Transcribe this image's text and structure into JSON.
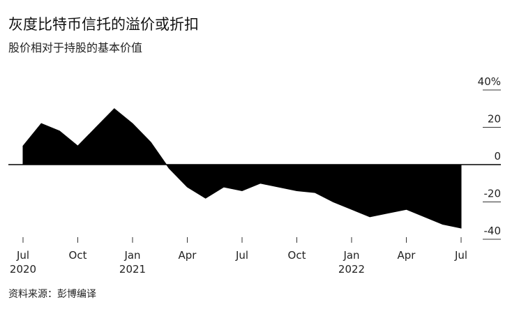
{
  "chart_data": {
    "type": "area",
    "title": "灰度比特币信托的溢价或折扣",
    "subtitle": "股价相对于持股的基本价值",
    "source": "资料来源：彭博编译",
    "x": [
      "2020-07",
      "2020-08",
      "2020-09",
      "2020-10",
      "2020-11",
      "2020-12",
      "2021-01",
      "2021-02",
      "2021-03",
      "2021-04",
      "2021-05",
      "2021-06",
      "2021-07",
      "2021-08",
      "2021-09",
      "2021-10",
      "2021-11",
      "2021-12",
      "2022-01",
      "2022-02",
      "2022-03",
      "2022-04",
      "2022-05",
      "2022-06",
      "2022-07"
    ],
    "series": [
      {
        "name": "溢价或折扣",
        "color": "#000000",
        "values": [
          10,
          22,
          18,
          10,
          20,
          30,
          22,
          12,
          -2,
          -12,
          -18,
          -12,
          -14,
          -10,
          -12,
          -14,
          -15,
          -20,
          -24,
          -28,
          -26,
          -24,
          -28,
          -32,
          -34
        ]
      }
    ],
    "xlim": [
      "2020-07",
      "2022-07"
    ],
    "xticks": [
      {
        "value": "2020-07",
        "label": "Jul"
      },
      {
        "value": "2020-10",
        "label": "Oct"
      },
      {
        "value": "2021-01",
        "label": "Jan"
      },
      {
        "value": "2021-04",
        "label": "Apr"
      },
      {
        "value": "2021-07",
        "label": "Jul"
      },
      {
        "value": "2021-10",
        "label": "Oct"
      },
      {
        "value": "2022-01",
        "label": "Jan"
      },
      {
        "value": "2022-04",
        "label": "Apr"
      },
      {
        "value": "2022-07",
        "label": "Jul"
      }
    ],
    "xtick_years": [
      {
        "value": "2020-07",
        "label": "2020"
      },
      {
        "value": "2021-01",
        "label": "2021"
      },
      {
        "value": "2022-01",
        "label": "2022"
      }
    ],
    "ylim": [
      -40,
      40
    ],
    "yticks": [
      {
        "value": 40,
        "label": "40%"
      },
      20,
      0,
      -20,
      -40
    ]
  }
}
